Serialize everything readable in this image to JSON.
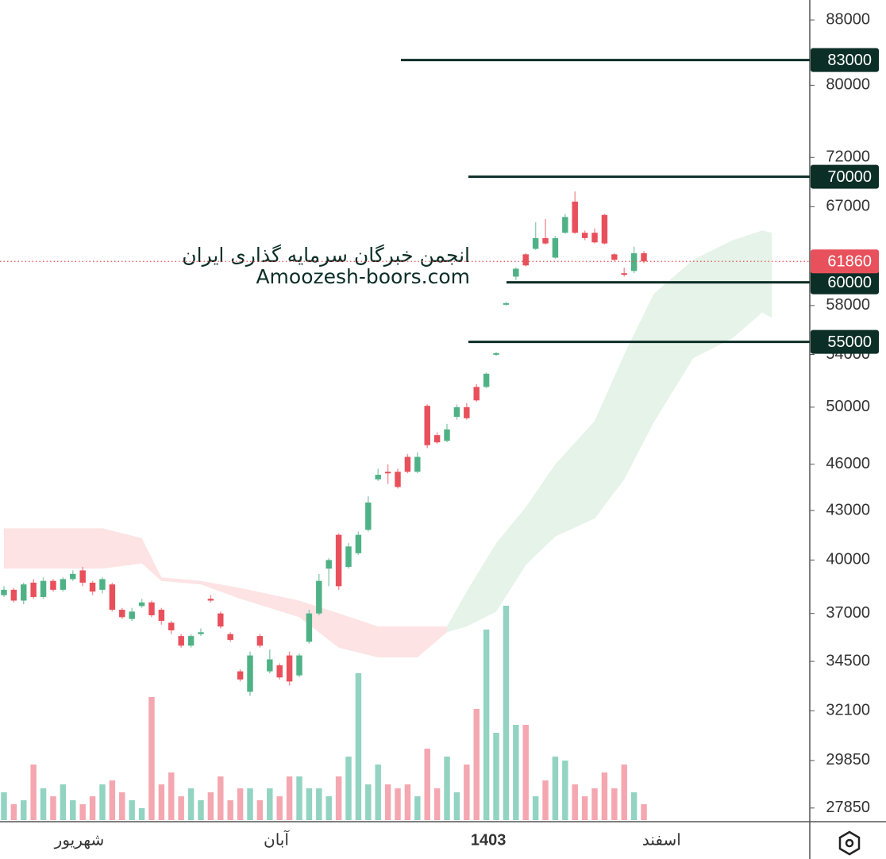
{
  "chart_data": {
    "type": "candlestick",
    "log_scale": true,
    "watermark": [
      "انجمن خبرگان سرمایه گذاری ایران",
      "Amoozesh-boors.com"
    ],
    "xlim": [
      -0.4,
      81.85
    ],
    "xticks": [
      {
        "value": 7.66,
        "label": "شهریور"
      },
      {
        "value": 27.66,
        "label": "آبان"
      },
      {
        "value": 49.2,
        "label": "1403"
      },
      {
        "value": 66.8,
        "label": "اسفند"
      }
    ],
    "ylim": [
      27300,
      90600
    ],
    "yticks": [
      88000,
      80000,
      72000,
      67000,
      58000,
      54000,
      50000,
      46000,
      43000,
      40000,
      37000,
      34500,
      32100,
      29850,
      27850
    ],
    "up_color": "#4fb286",
    "down_color": "#e8505b",
    "volume_up_color": "#92d3c2",
    "volume_down_color": "#f4a7b0",
    "open": [
      38000,
      38300,
      37700,
      38700,
      37900,
      38800,
      38300,
      38900,
      39400,
      38700,
      38300,
      38600,
      37200,
      36700,
      37400,
      37600,
      37200,
      36500,
      35800,
      35300,
      35900,
      37800,
      37000,
      35900,
      34000,
      33000,
      35800,
      34000,
      34300,
      34800,
      33800,
      35500,
      37000,
      39500,
      41500,
      39600,
      40400,
      41800,
      45000,
      45500,
      45500,
      46500,
      45500,
      50100,
      48000,
      47600,
      49300,
      50000,
      51500,
      51500,
      54000,
      58100,
      60500,
      62500,
      63000,
      64000,
      62200,
      64500,
      67500,
      64500,
      64500,
      66200,
      62500,
      60800,
      61000,
      62600
    ],
    "high": [
      38500,
      38400,
      38700,
      38900,
      39000,
      38900,
      39000,
      39400,
      39600,
      38800,
      39000,
      38700,
      37300,
      37300,
      37800,
      37700,
      37300,
      36600,
      35900,
      35900,
      36200,
      38000,
      37100,
      36000,
      34100,
      35000,
      35900,
      35100,
      34400,
      35000,
      34900,
      37200,
      39200,
      40100,
      41600,
      41000,
      41700,
      43900,
      45700,
      46000,
      45700,
      46700,
      46800,
      50200,
      48200,
      48800,
      50200,
      50300,
      51700,
      52600,
      54200,
      58300,
      61300,
      62600,
      65500,
      65800,
      64200,
      66300,
      68500,
      64700,
      64900,
      66300,
      62600,
      61300,
      63200,
      62800
    ],
    "low": [
      37900,
      37600,
      37500,
      37800,
      37800,
      38200,
      38200,
      38800,
      38500,
      38000,
      38100,
      37100,
      36700,
      36600,
      37300,
      36800,
      36400,
      35900,
      35200,
      35200,
      35800,
      37600,
      36200,
      35500,
      33500,
      32800,
      35200,
      33900,
      33600,
      33300,
      33700,
      35400,
      36900,
      38500,
      38300,
      39500,
      40300,
      41700,
      44900,
      44700,
      44400,
      45400,
      45400,
      47100,
      47400,
      47500,
      49100,
      49100,
      50400,
      51400,
      53900,
      58000,
      60200,
      61400,
      62900,
      63400,
      62100,
      64400,
      64400,
      63800,
      63500,
      63400,
      61900,
      60500,
      60800,
      61700
    ],
    "close": [
      38300,
      37700,
      38600,
      37900,
      38800,
      38300,
      38900,
      39200,
      38700,
      38200,
      38900,
      37200,
      36800,
      37100,
      37600,
      36900,
      36600,
      36100,
      35300,
      35800,
      36000,
      37700,
      36300,
      35600,
      33600,
      34800,
      35300,
      34600,
      33700,
      33500,
      34800,
      37000,
      38800,
      40000,
      38500,
      40800,
      41500,
      43500,
      45300,
      45400,
      44500,
      45500,
      46500,
      47300,
      47500,
      48400,
      50000,
      49200,
      50500,
      52500,
      54100,
      58200,
      61200,
      61500,
      64000,
      63500,
      64000,
      66000,
      64500,
      64000,
      63600,
      63500,
      62000,
      60700,
      62600,
      61860
    ],
    "volume": [
      35,
      20,
      25,
      70,
      40,
      30,
      45,
      25,
      20,
      30,
      45,
      50,
      35,
      25,
      15,
      155,
      45,
      60,
      30,
      40,
      25,
      35,
      55,
      25,
      40,
      40,
      25,
      40,
      30,
      55,
      55,
      40,
      40,
      30,
      55,
      80,
      185,
      45,
      70,
      45,
      40,
      45,
      30,
      90,
      40,
      80,
      35,
      70,
      140,
      240,
      110,
      270,
      120,
      120,
      30,
      50,
      80,
      75,
      45,
      30,
      40,
      60,
      40,
      70,
      35,
      20
    ],
    "levels": [
      83000,
      70000,
      60000,
      55000
    ],
    "level_color": "#0b2e26",
    "cloud_bearish": {
      "color": "#fde3e4",
      "x": [
        0,
        10,
        14,
        16,
        20,
        24,
        30,
        34,
        38,
        42,
        45
      ],
      "upper": [
        41900,
        41900,
        41300,
        39000,
        38800,
        38400,
        37700,
        37000,
        36300,
        36300,
        36300
      ],
      "lower": [
        39500,
        39500,
        39800,
        38800,
        38600,
        37800,
        36800,
        35200,
        34700,
        34700,
        36000
      ]
    },
    "cloud_bullish": {
      "color": "#e5f3e8",
      "x": [
        45,
        47,
        50,
        53,
        56,
        60,
        63,
        66,
        70,
        74,
        77,
        78
      ],
      "upper": [
        36300,
        38200,
        41000,
        43200,
        46000,
        49000,
        54000,
        59000,
        62000,
        63800,
        64700,
        64500
      ],
      "lower": [
        36000,
        36300,
        37100,
        39700,
        41400,
        42500,
        45000,
        48900,
        53700,
        55300,
        57400,
        57000
      ]
    }
  }
}
